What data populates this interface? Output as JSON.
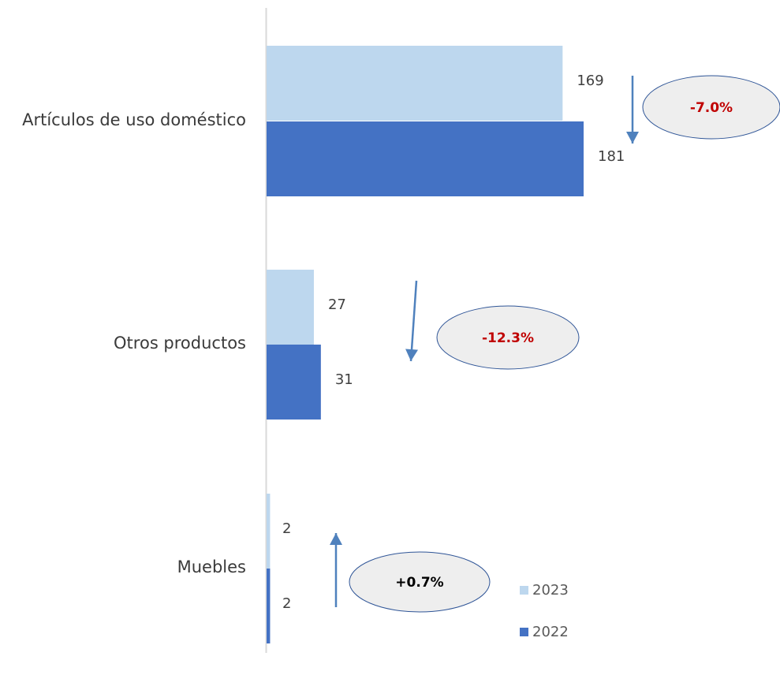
{
  "chart_data": {
    "type": "bar",
    "orientation": "horizontal",
    "categories": [
      "Artículos de uso doméstico",
      "Otros productos",
      "Muebles"
    ],
    "series": [
      {
        "name": "2023",
        "values": [
          169,
          27,
          2
        ],
        "color": "#BDD7EE"
      },
      {
        "name": "2022",
        "values": [
          181,
          31,
          2
        ],
        "color": "#4472C4"
      }
    ],
    "data_labels": [
      [
        "169",
        "27",
        "2"
      ],
      [
        "181",
        "31",
        "2"
      ]
    ],
    "change_labels": [
      {
        "text": "-7.0%",
        "color": "#C00000",
        "direction": "down"
      },
      {
        "text": "-12.3%",
        "color": "#C00000",
        "direction": "down"
      },
      {
        "text": "+0.7%",
        "color": "#000000",
        "direction": "up"
      }
    ],
    "grid": false,
    "legend_position": "bottom-right",
    "arrow_color": "#4F81BD",
    "ellipse_fill": "#EEEEEE",
    "ellipse_stroke": "#2F5597"
  }
}
